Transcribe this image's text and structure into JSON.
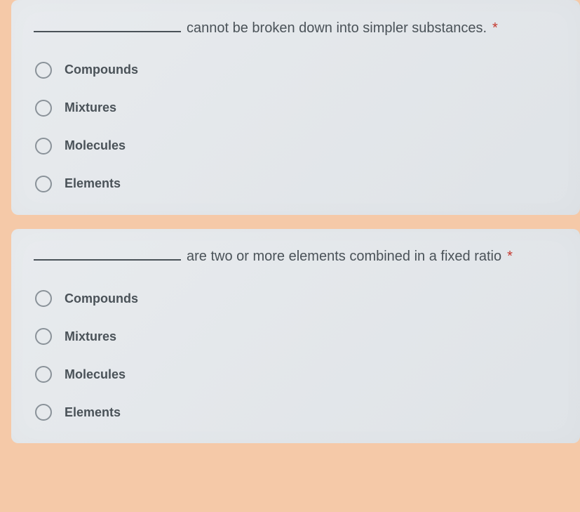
{
  "questions": [
    {
      "text": "cannot be broken down into simpler substances.",
      "required_mark": "*",
      "options": [
        {
          "label": "Compounds"
        },
        {
          "label": "Mixtures"
        },
        {
          "label": "Molecules"
        },
        {
          "label": "Elements"
        }
      ]
    },
    {
      "text": "are two or more elements combined in a fixed ratio",
      "required_mark": "*",
      "options": [
        {
          "label": "Compounds"
        },
        {
          "label": "Mixtures"
        },
        {
          "label": "Molecules"
        },
        {
          "label": "Elements"
        }
      ]
    }
  ],
  "styling": {
    "page_background": "#f5c9a8",
    "card_background": "#e8ebee",
    "text_color": "#4a5258",
    "required_color": "#c5392e",
    "radio_border_color": "#8a9299",
    "blank_underline_color": "#4a5258",
    "question_fontsize": 20,
    "option_fontsize": 18,
    "card_border_radius": 10,
    "radio_size": 24
  }
}
